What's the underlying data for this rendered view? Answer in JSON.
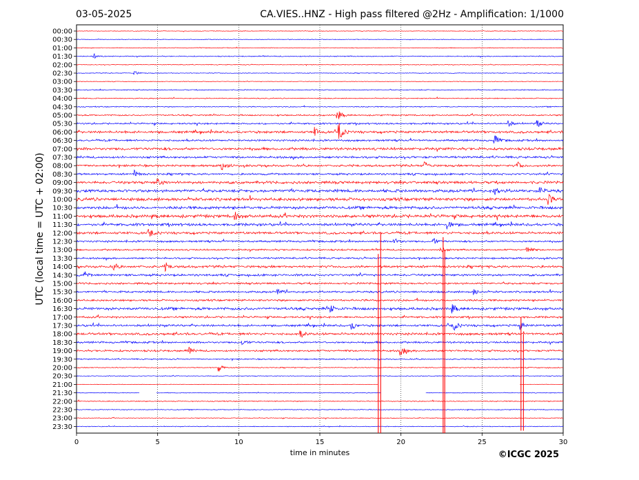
{
  "chart_data": {
    "type": "line",
    "date": "03-05-2025",
    "title": "CA.VIES..HNZ - High pass filtered @2Hz - Amplification: 1/1000",
    "xlabel": "time in minutes",
    "ylabel": "UTC (local time = UTC + 02:00)",
    "copyright": "©ICGC 2025",
    "xlim": [
      0,
      30
    ],
    "x_ticks": [
      0,
      5,
      10,
      15,
      20,
      25,
      30
    ],
    "vertical_gridlines_at": [
      5,
      10,
      15,
      20,
      25
    ],
    "row_labels": [
      "00:00",
      "00:30",
      "01:00",
      "01:30",
      "02:00",
      "02:30",
      "03:00",
      "03:30",
      "04:00",
      "04:30",
      "05:00",
      "05:30",
      "06:00",
      "06:30",
      "07:00",
      "07:30",
      "08:00",
      "08:30",
      "09:00",
      "09:30",
      "10:00",
      "10:30",
      "11:00",
      "11:30",
      "12:00",
      "12:30",
      "13:00",
      "13:30",
      "14:00",
      "14:30",
      "15:00",
      "15:30",
      "16:00",
      "16:30",
      "17:00",
      "17:30",
      "18:00",
      "18:30",
      "19:00",
      "19:30",
      "20:00",
      "20:30",
      "21:00",
      "21:30",
      "22:00",
      "22:30",
      "23:00",
      "23:30"
    ],
    "series_colors": [
      "#ff0000",
      "#0000ff"
    ],
    "noise_level": [
      0.5,
      0.5,
      0.6,
      0.8,
      0.6,
      0.6,
      0.5,
      0.8,
      0.8,
      0.8,
      1.2,
      1.4,
      2.0,
      1.6,
      2.2,
      1.8,
      1.8,
      1.6,
      2.2,
      2.4,
      2.6,
      2.4,
      2.6,
      2.2,
      2.0,
      1.6,
      1.4,
      1.4,
      2.0,
      1.8,
      1.6,
      1.6,
      1.6,
      2.2,
      1.6,
      1.8,
      2.0,
      1.6,
      1.6,
      1.0,
      0.8,
      0.6,
      0.4,
      0.6,
      0.8,
      0.7,
      0.6,
      0.6
    ],
    "events": [
      {
        "row": 10,
        "minute": 16.1,
        "amplitude": 8
      },
      {
        "row": 12,
        "minute": 14.7,
        "amplitude": 6
      },
      {
        "row": 12,
        "minute": 16.2,
        "amplitude": 12
      },
      {
        "row": 11,
        "minute": 28.4,
        "amplitude": 6
      },
      {
        "row": 11,
        "minute": 26.6,
        "amplitude": 5
      },
      {
        "row": 13,
        "minute": 25.8,
        "amplitude": 7
      },
      {
        "row": 16,
        "minute": 9.0,
        "amplitude": 6
      },
      {
        "row": 16,
        "minute": 21.5,
        "amplitude": 5
      },
      {
        "row": 16,
        "minute": 27.2,
        "amplitude": 5
      },
      {
        "row": 17,
        "minute": 3.6,
        "amplitude": 5
      },
      {
        "row": 18,
        "minute": 5.0,
        "amplitude": 5
      },
      {
        "row": 19,
        "minute": 25.8,
        "amplitude": 5
      },
      {
        "row": 19,
        "minute": 28.6,
        "amplitude": 5
      },
      {
        "row": 20,
        "minute": 29.1,
        "amplitude": 7
      },
      {
        "row": 22,
        "minute": 9.8,
        "amplitude": 6
      },
      {
        "row": 23,
        "minute": 22.9,
        "amplitude": 6
      },
      {
        "row": 24,
        "minute": 4.5,
        "amplitude": 5
      },
      {
        "row": 25,
        "minute": 19.6,
        "amplitude": 5
      },
      {
        "row": 25,
        "minute": 22.0,
        "amplitude": 5
      },
      {
        "row": 26,
        "minute": 22.4,
        "amplitude": 5
      },
      {
        "row": 26,
        "minute": 27.8,
        "amplitude": 6
      },
      {
        "row": 28,
        "minute": 2.3,
        "amplitude": 4
      },
      {
        "row": 28,
        "minute": 5.5,
        "amplitude": 5
      },
      {
        "row": 29,
        "minute": 0.5,
        "amplitude": 4
      },
      {
        "row": 31,
        "minute": 12.4,
        "amplitude": 4
      },
      {
        "row": 31,
        "minute": 24.5,
        "amplitude": 4
      },
      {
        "row": 33,
        "minute": 15.7,
        "amplitude": 6
      },
      {
        "row": 33,
        "minute": 23.2,
        "amplitude": 5
      },
      {
        "row": 35,
        "minute": 17.0,
        "amplitude": 5
      },
      {
        "row": 35,
        "minute": 23.3,
        "amplitude": 6
      },
      {
        "row": 35,
        "minute": 27.4,
        "amplitude": 5
      },
      {
        "row": 36,
        "minute": 13.8,
        "amplitude": 5
      },
      {
        "row": 37,
        "minute": 10.2,
        "amplitude": 5
      },
      {
        "row": 38,
        "minute": 20.0,
        "amplitude": 7
      },
      {
        "row": 38,
        "minute": 6.9,
        "amplitude": 5
      },
      {
        "row": 40,
        "minute": 8.8,
        "amplitude": 5
      },
      {
        "row": 5,
        "minute": 3.6,
        "amplitude": 3
      },
      {
        "row": 3,
        "minute": 1.1,
        "amplitude": 3
      }
    ],
    "spikes": [
      {
        "minute": 18.6,
        "from_row": 26.5,
        "to_row": 48
      },
      {
        "minute": 18.75,
        "from_row": 24,
        "to_row": 48
      },
      {
        "minute": 22.6,
        "from_row": 24.5,
        "to_row": 48
      },
      {
        "minute": 22.7,
        "from_row": 26,
        "to_row": 48
      },
      {
        "minute": 27.4,
        "from_row": 34,
        "to_row": 47.5
      },
      {
        "minute": 27.55,
        "from_row": 36,
        "to_row": 47.5
      }
    ],
    "gaps": [
      {
        "row": 42,
        "from_minute": 18.6,
        "to_minute": 27.3
      },
      {
        "row": 43,
        "from_minute": 3.9,
        "to_minute": 4.9
      },
      {
        "row": 43,
        "from_minute": 18.8,
        "to_minute": 21.5
      }
    ]
  }
}
